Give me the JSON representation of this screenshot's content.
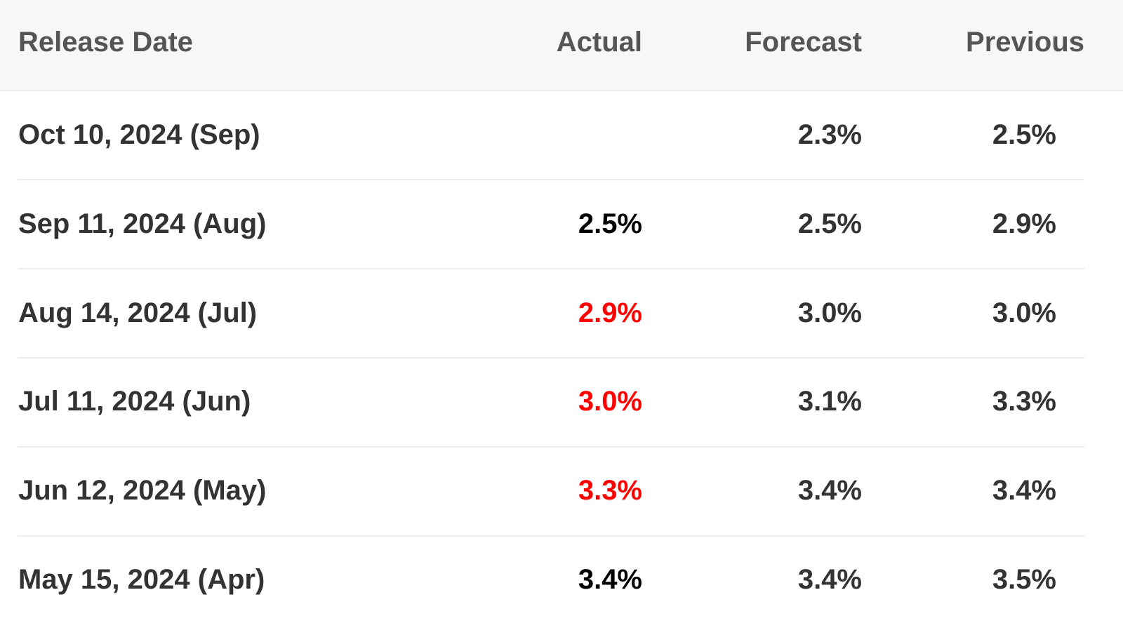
{
  "table": {
    "columns": [
      "Release Date",
      "Actual",
      "Forecast",
      "Previous"
    ],
    "rows": [
      [
        "Oct 10, 2024 (Sep)",
        null,
        "2.3%",
        "2.5%"
      ],
      [
        "Sep 11, 2024 (Aug)",
        "2.5%",
        "2.5%",
        "2.9%"
      ],
      [
        "Aug 14, 2024 (Jul)",
        "2.9%",
        "3.0%",
        "3.0%"
      ],
      [
        "Jul 11, 2024 (Jun)",
        "3.0%",
        "3.1%",
        "3.3%"
      ],
      [
        "Jun 12, 2024 (May)",
        "3.3%",
        "3.4%",
        "3.4%"
      ],
      [
        "May 15, 2024 (Apr)",
        "3.4%",
        "3.4%",
        "3.5%"
      ]
    ],
    "actual_colors": [
      null,
      "#000000",
      "#ff0000",
      "#ff0000",
      "#ff0000",
      "#000000"
    ]
  }
}
